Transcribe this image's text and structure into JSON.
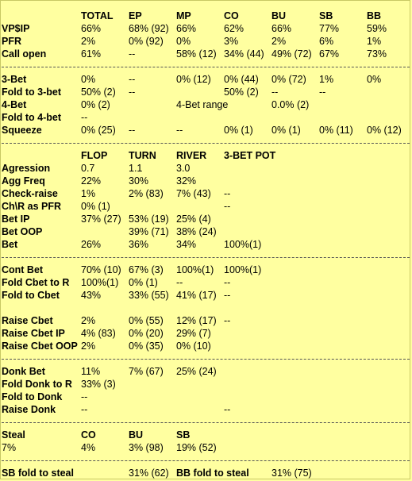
{
  "rows": [
    {
      "cells": [
        "",
        "TOTAL",
        "EP",
        "MP",
        "CO",
        "BU",
        "SB",
        "BB"
      ],
      "header": true
    },
    {
      "cells": [
        "VP$IP",
        "66%",
        "68% (92)",
        "66%",
        "62%",
        "66%",
        "77%",
        "59%"
      ]
    },
    {
      "cells": [
        "PFR",
        "2%",
        "0% (92)",
        "0%",
        "3%",
        "2%",
        "6%",
        "1%"
      ]
    },
    {
      "cells": [
        "Call open",
        "61%",
        "--",
        "58% (12)",
        "34% (44)",
        "49% (72)",
        "67%",
        "73%"
      ]
    },
    {
      "cells": [
        "3-Bet",
        "0%",
        "--",
        "0% (12)",
        "0% (44)",
        "0% (72)",
        "1%",
        "0%"
      ]
    },
    {
      "cells": [
        "Fold to 3-bet",
        "50% (2)",
        "--",
        "",
        "50% (2)",
        "--",
        "--",
        ""
      ]
    },
    {
      "cells": [
        "4-Bet",
        "0% (2)",
        "",
        "4-Bet range",
        "",
        "0.0% (2)",
        "",
        ""
      ]
    },
    {
      "cells": [
        "Fold to 4-bet",
        "--",
        "",
        "",
        "",
        "",
        "",
        ""
      ]
    },
    {
      "cells": [
        "Squeeze",
        "0% (25)",
        "--",
        "--",
        "0% (1)",
        "0% (1)",
        "0% (11)",
        "0% (12)"
      ]
    },
    {
      "cells": [
        "",
        "FLOP",
        "TURN",
        "RIVER",
        "3-BET POT",
        "",
        "",
        ""
      ],
      "header": true
    },
    {
      "cells": [
        "Agression",
        "0.7",
        "1.1",
        "3.0",
        "",
        "",
        "",
        ""
      ]
    },
    {
      "cells": [
        "Agg Freq",
        "22%",
        "30%",
        "32%",
        "",
        "",
        "",
        ""
      ]
    },
    {
      "cells": [
        "Check-raise",
        "1%",
        "2% (83)",
        "7% (43)",
        "--",
        "",
        "",
        ""
      ]
    },
    {
      "cells": [
        "Ch\\R as PFR",
        "0% (1)",
        "",
        "",
        "--",
        "",
        "",
        ""
      ]
    },
    {
      "cells": [
        "Bet IP",
        "37% (27)",
        "53% (19)",
        "25% (4)",
        "",
        "",
        "",
        ""
      ]
    },
    {
      "cells": [
        "Bet OOP",
        "",
        "39% (71)",
        "38% (24)",
        "",
        "",
        "",
        ""
      ]
    },
    {
      "cells": [
        "Bet",
        "26%",
        "36%",
        "34%",
        "100%(1)",
        "",
        "",
        ""
      ]
    },
    {
      "cells": [
        "Cont Bet",
        "70% (10)",
        "67% (3)",
        "100%(1)",
        "100%(1)",
        "",
        "",
        ""
      ]
    },
    {
      "cells": [
        "Fold Cbet to R",
        "100%(1)",
        "0% (1)",
        "--",
        "--",
        "",
        "",
        ""
      ]
    },
    {
      "cells": [
        "Fold to Cbet",
        "43%",
        "33% (55)",
        "41% (17)",
        "--",
        "",
        "",
        ""
      ]
    },
    {
      "cells": [
        "Raise Cbet",
        "2%",
        "0% (55)",
        "12% (17)",
        "--",
        "",
        "",
        ""
      ]
    },
    {
      "cells": [
        "Raise Cbet IP",
        "4% (83)",
        "0% (20)",
        "29% (7)",
        "",
        "",
        "",
        ""
      ]
    },
    {
      "cells": [
        "Raise Cbet OOP",
        "2%",
        "0% (35)",
        "0% (10)",
        "",
        "",
        "",
        ""
      ]
    },
    {
      "cells": [
        "Donk Bet",
        "11%",
        "7% (67)",
        "25% (24)",
        "",
        "",
        "",
        ""
      ]
    },
    {
      "cells": [
        "Fold Donk to R",
        "33% (3)",
        "",
        "",
        "",
        "",
        "",
        ""
      ]
    },
    {
      "cells": [
        "Fold to Donk",
        "--",
        "",
        "",
        "",
        "",
        "",
        ""
      ]
    },
    {
      "cells": [
        "Raise Donk",
        "--",
        "",
        "",
        "--",
        "",
        "",
        ""
      ]
    },
    {
      "cells": [
        "Steal",
        "CO",
        "BU",
        "SB",
        "",
        "",
        "",
        ""
      ],
      "header": true
    },
    {
      "cells": [
        "7%",
        "4%",
        "3% (98)",
        "19% (52)",
        "",
        "",
        "",
        ""
      ],
      "plain": true
    },
    {
      "cells": [
        "SB fold to steal",
        "",
        "31% (62)",
        "BB fold to steal",
        "31% (75)",
        "",
        "",
        ""
      ],
      "mixed": true
    }
  ]
}
